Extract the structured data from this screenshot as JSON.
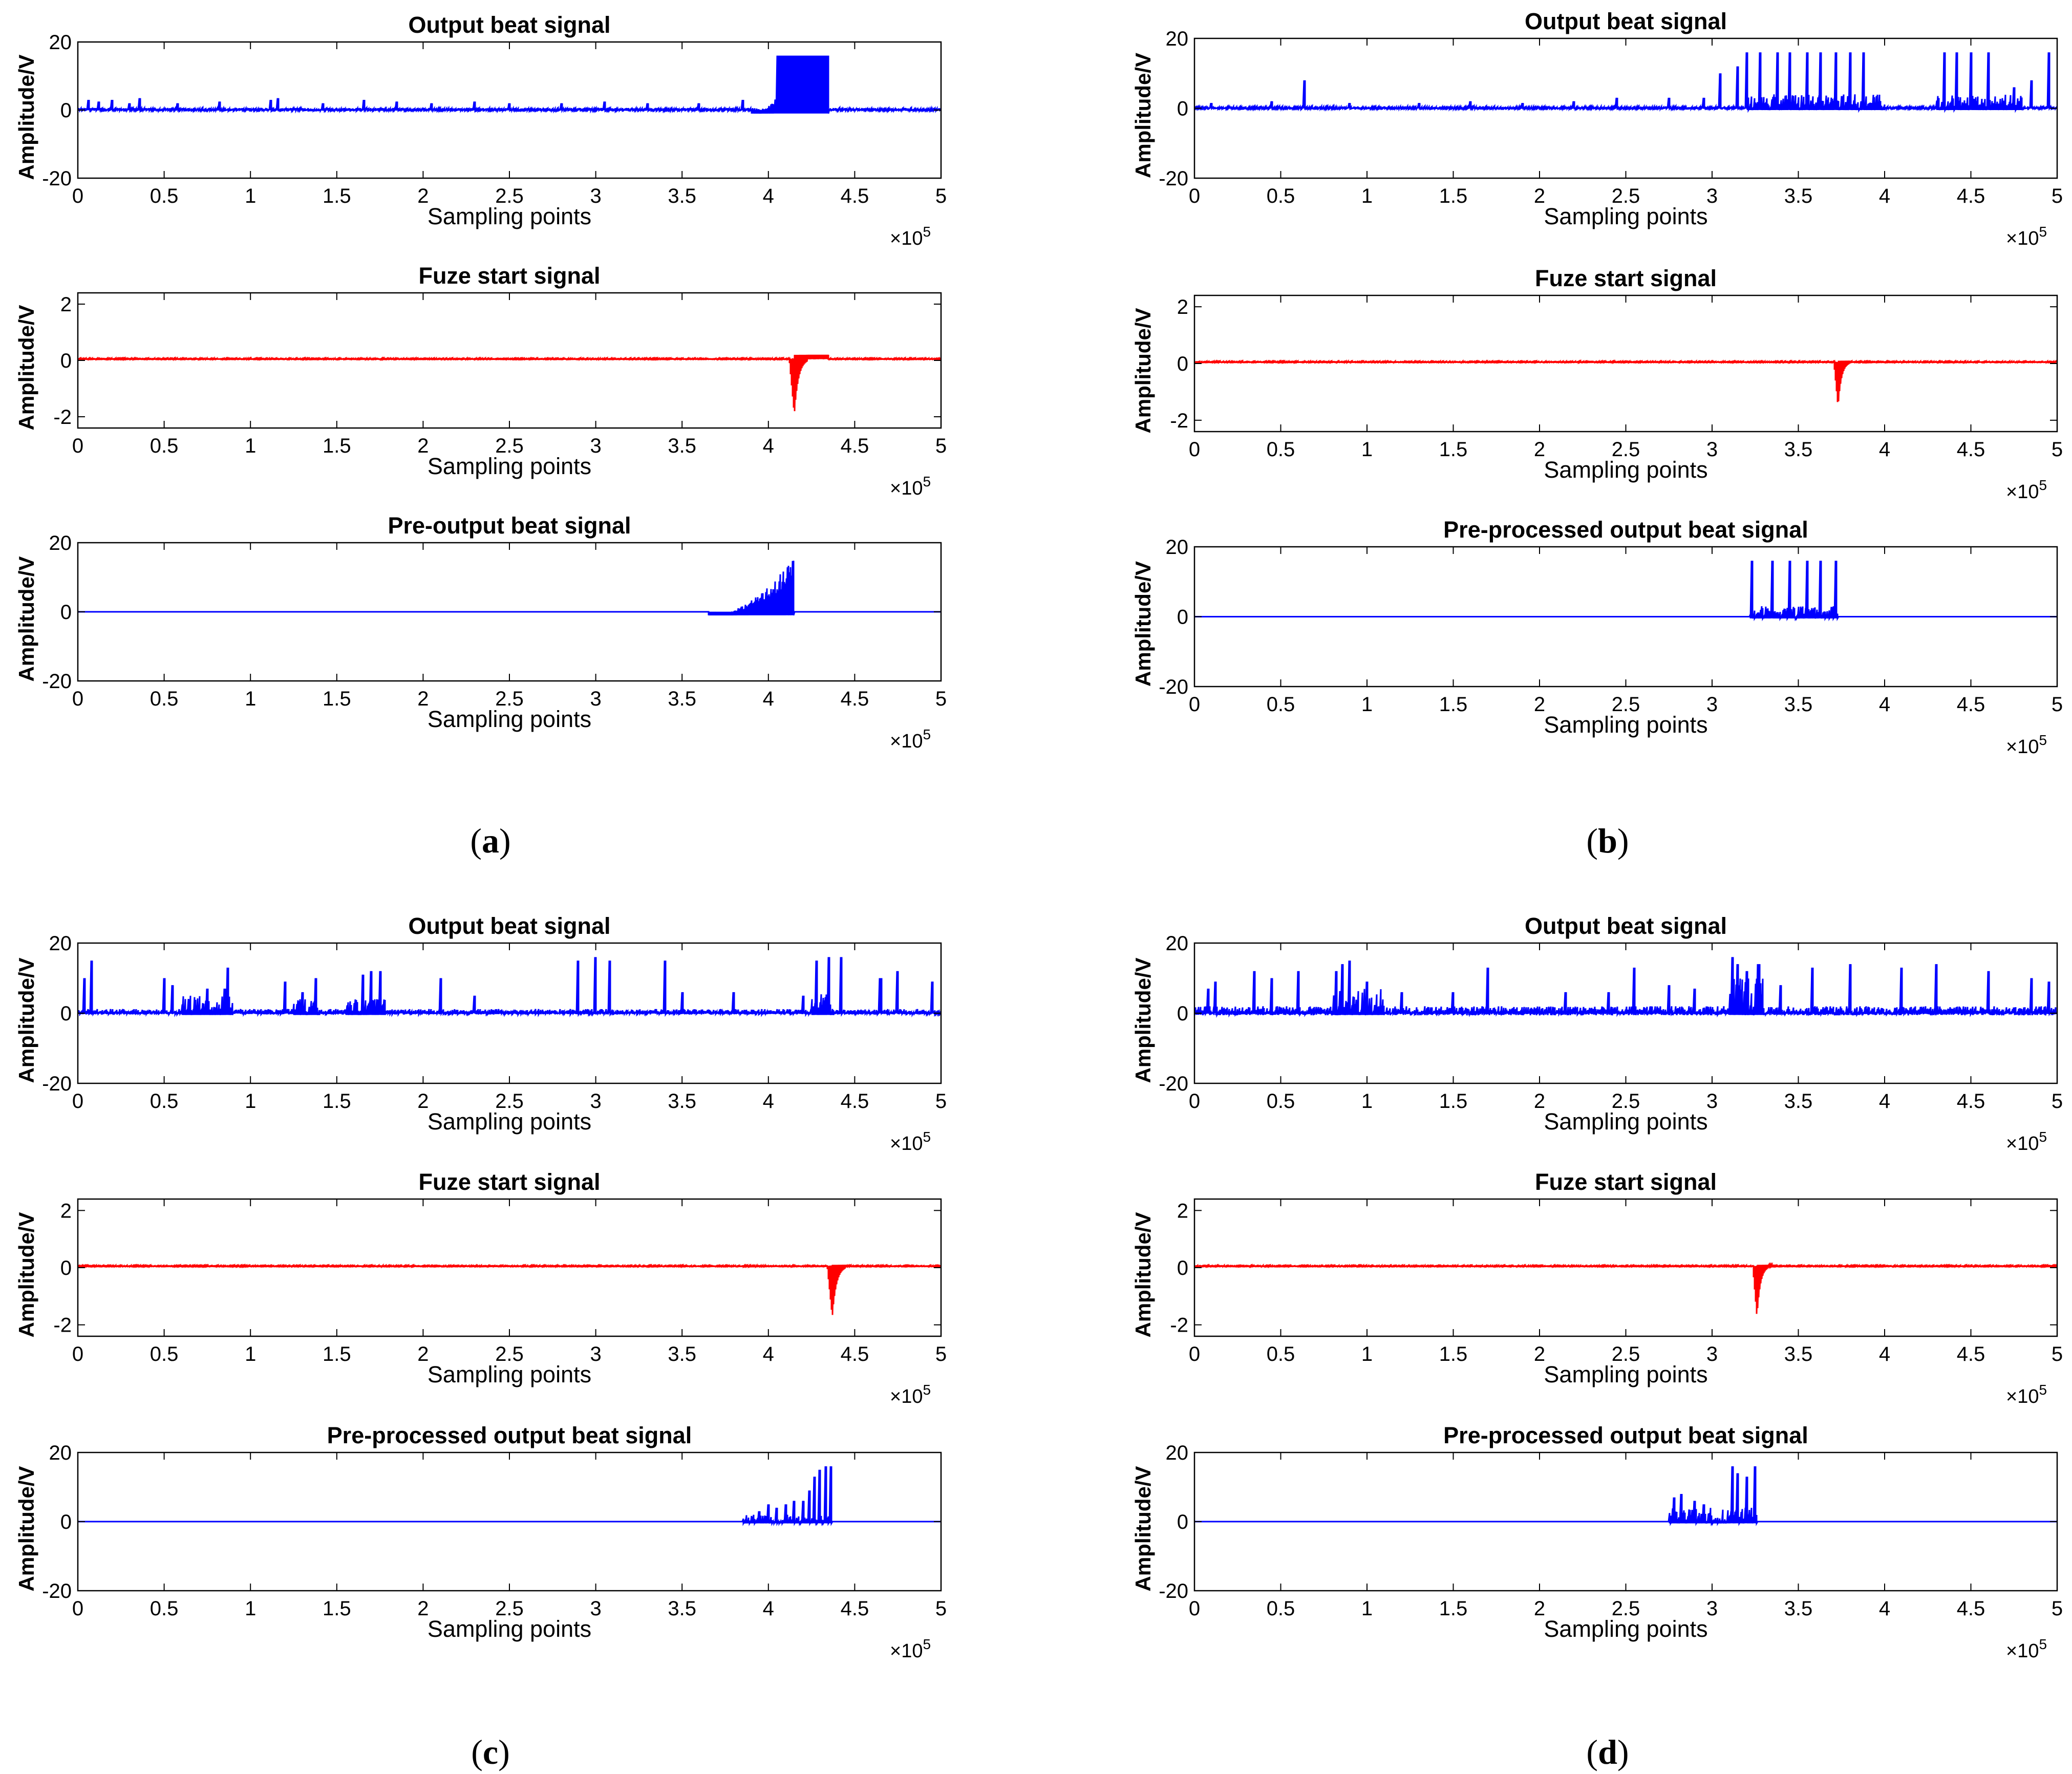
{
  "colors": {
    "blue": "#0000ff",
    "red": "#ff0000",
    "axis": "#000000",
    "background": "#ffffff"
  },
  "panel_labels": [
    {
      "open": "(",
      "letter": "a",
      "close": ")"
    },
    {
      "open": "(",
      "letter": "b",
      "close": ")"
    },
    {
      "open": "(",
      "letter": "c",
      "close": ")"
    },
    {
      "open": "(",
      "letter": "d",
      "close": ")"
    }
  ],
  "chart_data": [
    {
      "panel": "a",
      "type": "line",
      "title": "Output beat signal",
      "xlabel": "Sampling points",
      "ylabel": "Amplitude/V",
      "xlim": [
        0,
        5
      ],
      "ylim": [
        -20,
        20
      ],
      "xticks": [
        "0",
        "0.5",
        "1",
        "1.5",
        "2",
        "2.5",
        "3",
        "3.5",
        "4",
        "4.5",
        "5"
      ],
      "yticks": [
        "-20",
        "0",
        "20"
      ],
      "x_multiplier": "×10",
      "x_exponent": "5",
      "color": "#0000ff",
      "baseline": 0,
      "noise": 0.6,
      "spikes": [
        [
          0.06,
          3
        ],
        [
          0.12,
          2.5
        ],
        [
          0.2,
          3
        ],
        [
          0.3,
          2
        ],
        [
          0.36,
          3.5
        ],
        [
          0.58,
          2
        ],
        [
          0.82,
          2.5
        ],
        [
          1.12,
          3
        ],
        [
          1.16,
          3.5
        ],
        [
          1.42,
          2
        ],
        [
          1.66,
          3
        ],
        [
          1.85,
          2.5
        ],
        [
          2.05,
          2
        ],
        [
          2.3,
          2.5
        ],
        [
          2.5,
          2
        ],
        [
          2.8,
          2
        ],
        [
          3.05,
          2.5
        ],
        [
          3.3,
          2
        ],
        [
          3.6,
          2
        ],
        [
          3.85,
          3
        ]
      ],
      "segments": [
        {
          "x0": 3.9,
          "x1": 4.05,
          "min": -1,
          "max": 4,
          "grow": true
        },
        {
          "x0": 4.05,
          "x1": 4.35,
          "min": -1,
          "max": 16,
          "solid": true
        }
      ]
    },
    {
      "panel": "a",
      "type": "line",
      "title": "Fuze start signal",
      "xlabel": "Sampling points",
      "ylabel": "Amplitude/V",
      "xlim": [
        0,
        5
      ],
      "ylim": [
        -2.4,
        2.4
      ],
      "xticks": [
        "0",
        "0.5",
        "1",
        "1.5",
        "2",
        "2.5",
        "3",
        "3.5",
        "4",
        "4.5",
        "5"
      ],
      "yticks": [
        "-2",
        "0",
        "2"
      ],
      "x_multiplier": "×10",
      "x_exponent": "5",
      "color": "#ff0000",
      "baseline": 0.05,
      "noise": 0.03,
      "dip": {
        "x": 4.15,
        "depth": -2.0,
        "width": 0.03,
        "after": 0.15,
        "after_end": 4.35
      }
    },
    {
      "panel": "a",
      "type": "line",
      "title": "Pre-output beat signal",
      "xlabel": "Sampling points",
      "ylabel": "Amplitude/V",
      "xlim": [
        0,
        5
      ],
      "ylim": [
        -20,
        20
      ],
      "xticks": [
        "0",
        "0.5",
        "1",
        "1.5",
        "2",
        "2.5",
        "3",
        "3.5",
        "4",
        "4.5",
        "5"
      ],
      "yticks": [
        "-20",
        "0",
        "20"
      ],
      "x_multiplier": "×10",
      "x_exponent": "5",
      "color": "#0000ff",
      "baseline": 0,
      "noise": 0,
      "segments": [
        {
          "x0": 3.65,
          "x1": 4.15,
          "min": -1,
          "max": 16,
          "grow": true
        }
      ]
    },
    {
      "panel": "b",
      "type": "line",
      "title": "Output beat signal",
      "xlabel": "Sampling points",
      "ylabel": "Amplitude/V",
      "xlim": [
        0,
        5
      ],
      "ylim": [
        -20,
        20
      ],
      "xticks": [
        "0",
        "0.5",
        "1",
        "1.5",
        "2",
        "2.5",
        "3",
        "3.5",
        "4",
        "4.5",
        "5"
      ],
      "yticks": [
        "-20",
        "0",
        "20"
      ],
      "x_multiplier": "×10",
      "x_exponent": "5",
      "color": "#0000ff",
      "baseline": 0,
      "noise": 0.5,
      "spikes": [
        [
          0.1,
          1.5
        ],
        [
          0.45,
          2
        ],
        [
          0.64,
          8
        ],
        [
          0.9,
          1.5
        ],
        [
          1.3,
          1.5
        ],
        [
          1.6,
          2
        ],
        [
          1.9,
          1.5
        ],
        [
          2.2,
          2
        ],
        [
          2.45,
          3
        ],
        [
          2.75,
          3
        ],
        [
          2.95,
          3
        ],
        [
          3.05,
          10
        ],
        [
          3.15,
          12
        ],
        [
          3.2,
          16
        ],
        [
          3.28,
          16
        ],
        [
          3.38,
          16
        ],
        [
          3.45,
          16
        ],
        [
          3.55,
          16
        ],
        [
          3.63,
          16
        ],
        [
          3.72,
          16
        ],
        [
          3.8,
          16
        ],
        [
          3.88,
          16
        ],
        [
          4.35,
          16
        ],
        [
          4.42,
          16
        ],
        [
          4.5,
          16
        ],
        [
          4.6,
          16
        ],
        [
          4.75,
          6
        ],
        [
          4.85,
          8
        ],
        [
          4.95,
          16
        ]
      ],
      "segments": [
        {
          "x0": 3.2,
          "x1": 4.0,
          "min": -0.5,
          "max": 4
        },
        {
          "x0": 4.3,
          "x1": 4.8,
          "min": -0.5,
          "max": 4
        }
      ]
    },
    {
      "panel": "b",
      "type": "line",
      "title": "Fuze start signal",
      "xlabel": "Sampling points",
      "ylabel": "Amplitude/V",
      "xlim": [
        0,
        5
      ],
      "ylim": [
        -2.4,
        2.4
      ],
      "xticks": [
        "0",
        "0.5",
        "1",
        "1.5",
        "2",
        "2.5",
        "3",
        "3.5",
        "4",
        "4.5",
        "5"
      ],
      "yticks": [
        "-2",
        "0",
        "2"
      ],
      "x_multiplier": "×10",
      "x_exponent": "5",
      "color": "#ff0000",
      "baseline": 0.05,
      "noise": 0.03,
      "dip": {
        "x": 3.73,
        "depth": -1.6,
        "width": 0.025,
        "after": 0.05,
        "after_end": 3.8
      }
    },
    {
      "panel": "b",
      "type": "line",
      "title": "Pre-processed output beat signal",
      "xlabel": "Sampling points",
      "ylabel": "Amplitude/V",
      "xlim": [
        0,
        5
      ],
      "ylim": [
        -20,
        20
      ],
      "xticks": [
        "0",
        "0.5",
        "1",
        "1.5",
        "2",
        "2.5",
        "3",
        "3.5",
        "4",
        "4.5",
        "5"
      ],
      "yticks": [
        "-20",
        "0",
        "20"
      ],
      "x_multiplier": "×10",
      "x_exponent": "5",
      "color": "#0000ff",
      "baseline": 0,
      "noise": 0,
      "spikes": [
        [
          3.23,
          16
        ],
        [
          3.35,
          16
        ],
        [
          3.45,
          16
        ],
        [
          3.55,
          16
        ],
        [
          3.63,
          16
        ],
        [
          3.72,
          16
        ]
      ],
      "segments": [
        {
          "x0": 3.22,
          "x1": 3.73,
          "min": -0.5,
          "max": 3
        }
      ]
    },
    {
      "panel": "c",
      "type": "line",
      "title": "Output beat signal",
      "xlabel": "Sampling points",
      "ylabel": "Amplitude/V",
      "xlim": [
        0,
        5
      ],
      "ylim": [
        -20,
        20
      ],
      "xticks": [
        "0",
        "0.5",
        "1",
        "1.5",
        "2",
        "2.5",
        "3",
        "3.5",
        "4",
        "4.5",
        "5"
      ],
      "yticks": [
        "-20",
        "0",
        "20"
      ],
      "x_multiplier": "×10",
      "x_exponent": "5",
      "color": "#0000ff",
      "baseline": 0,
      "noise": 1.2,
      "spikes": [
        [
          0.04,
          10
        ],
        [
          0.08,
          15
        ],
        [
          0.5,
          10
        ],
        [
          0.55,
          8
        ],
        [
          0.75,
          7
        ],
        [
          0.85,
          7
        ],
        [
          0.87,
          13
        ],
        [
          1.2,
          9
        ],
        [
          1.3,
          6
        ],
        [
          1.38,
          10
        ],
        [
          1.65,
          11
        ],
        [
          1.7,
          12
        ],
        [
          1.75,
          12
        ],
        [
          2.1,
          10
        ],
        [
          2.3,
          5
        ],
        [
          2.9,
          15
        ],
        [
          3.0,
          16
        ],
        [
          3.08,
          15
        ],
        [
          3.4,
          15
        ],
        [
          3.5,
          6
        ],
        [
          3.8,
          6
        ],
        [
          4.2,
          5
        ],
        [
          4.28,
          15
        ],
        [
          4.35,
          16
        ],
        [
          4.42,
          16
        ],
        [
          4.65,
          10
        ],
        [
          4.75,
          12
        ],
        [
          4.95,
          9
        ]
      ],
      "segments": [
        {
          "x0": 0.6,
          "x1": 0.9,
          "min": -0.5,
          "max": 5
        },
        {
          "x0": 1.25,
          "x1": 1.4,
          "min": -0.5,
          "max": 4
        },
        {
          "x0": 1.55,
          "x1": 1.78,
          "min": -0.5,
          "max": 4
        },
        {
          "x0": 4.25,
          "x1": 4.38,
          "min": -0.5,
          "max": 6
        }
      ]
    },
    {
      "panel": "c",
      "type": "line",
      "title": "Fuze start signal",
      "xlabel": "Sampling points",
      "ylabel": "Amplitude/V",
      "xlim": [
        0,
        5
      ],
      "ylim": [
        -2.4,
        2.4
      ],
      "xticks": [
        "0",
        "0.5",
        "1",
        "1.5",
        "2",
        "2.5",
        "3",
        "3.5",
        "4",
        "4.5",
        "5"
      ],
      "yticks": [
        "-2",
        "0",
        "2"
      ],
      "x_multiplier": "×10",
      "x_exponent": "5",
      "color": "#ff0000",
      "baseline": 0.05,
      "noise": 0.03,
      "dip": {
        "x": 4.37,
        "depth": -1.8,
        "width": 0.03,
        "after": 0.05,
        "after_end": 4.45
      }
    },
    {
      "panel": "c",
      "type": "line",
      "title": "Pre-processed output beat signal",
      "xlabel": "Sampling points",
      "ylabel": "Amplitude/V",
      "xlim": [
        0,
        5
      ],
      "ylim": [
        -20,
        20
      ],
      "xticks": [
        "0",
        "0.5",
        "1",
        "1.5",
        "2",
        "2.5",
        "3",
        "3.5",
        "4",
        "4.5",
        "5"
      ],
      "yticks": [
        "-20",
        "0",
        "20"
      ],
      "x_multiplier": "×10",
      "x_exponent": "5",
      "color": "#0000ff",
      "baseline": 0,
      "noise": 0,
      "spikes": [
        [
          3.95,
          3
        ],
        [
          4.0,
          5
        ],
        [
          4.05,
          4
        ],
        [
          4.1,
          5
        ],
        [
          4.15,
          6
        ],
        [
          4.2,
          6
        ],
        [
          4.24,
          9
        ],
        [
          4.27,
          13
        ],
        [
          4.3,
          15
        ],
        [
          4.33,
          16
        ],
        [
          4.36,
          16
        ]
      ],
      "segments": [
        {
          "x0": 3.85,
          "x1": 4.37,
          "min": -0.5,
          "max": 2
        }
      ]
    },
    {
      "panel": "d",
      "type": "line",
      "title": "Output beat signal",
      "xlabel": "Sampling points",
      "ylabel": "Amplitude/V",
      "xlim": [
        0,
        5
      ],
      "ylim": [
        -20,
        20
      ],
      "xticks": [
        "0",
        "0.5",
        "1",
        "1.5",
        "2",
        "2.5",
        "3",
        "3.5",
        "4",
        "4.5",
        "5"
      ],
      "yticks": [
        "-20",
        "0",
        "20"
      ],
      "x_multiplier": "×10",
      "x_exponent": "5",
      "color": "#0000ff",
      "baseline": 0,
      "noise": 2,
      "spikes": [
        [
          0.08,
          7
        ],
        [
          0.12,
          9
        ],
        [
          0.35,
          12
        ],
        [
          0.45,
          10
        ],
        [
          0.6,
          12
        ],
        [
          0.82,
          12
        ],
        [
          0.86,
          14
        ],
        [
          0.9,
          15
        ],
        [
          1.0,
          9
        ],
        [
          1.2,
          6
        ],
        [
          1.5,
          6
        ],
        [
          1.7,
          13
        ],
        [
          2.15,
          6
        ],
        [
          2.4,
          6
        ],
        [
          2.55,
          13
        ],
        [
          2.75,
          8
        ],
        [
          2.9,
          7
        ],
        [
          3.12,
          16
        ],
        [
          3.15,
          14
        ],
        [
          3.2,
          12
        ],
        [
          3.27,
          14
        ],
        [
          3.4,
          8
        ],
        [
          3.58,
          13
        ],
        [
          3.8,
          14
        ],
        [
          4.1,
          13
        ],
        [
          4.3,
          14
        ],
        [
          4.6,
          12
        ],
        [
          4.85,
          10
        ],
        [
          4.95,
          9
        ]
      ],
      "segments": [
        {
          "x0": 0.8,
          "x1": 1.1,
          "min": -0.5,
          "max": 7
        },
        {
          "x0": 3.1,
          "x1": 3.3,
          "min": -0.5,
          "max": 10
        }
      ]
    },
    {
      "panel": "d",
      "type": "line",
      "title": "Fuze start signal",
      "xlabel": "Sampling points",
      "ylabel": "Amplitude/V",
      "xlim": [
        0,
        5
      ],
      "ylim": [
        -2.4,
        2.4
      ],
      "xticks": [
        "0",
        "0.5",
        "1",
        "1.5",
        "2",
        "2.5",
        "3",
        "3.5",
        "4",
        "4.5",
        "5"
      ],
      "yticks": [
        "-2",
        "0",
        "2"
      ],
      "x_multiplier": "×10",
      "x_exponent": "5",
      "color": "#ff0000",
      "baseline": 0.05,
      "noise": 0.03,
      "dip": {
        "x": 3.26,
        "depth": -1.8,
        "width": 0.025,
        "after": 0.05,
        "after_end": 3.35
      }
    },
    {
      "panel": "d",
      "type": "line",
      "title": "Pre-processed output beat signal",
      "xlabel": "Sampling points",
      "ylabel": "Amplitude/V",
      "xlim": [
        0,
        5
      ],
      "ylim": [
        -20,
        20
      ],
      "xticks": [
        "0",
        "0.5",
        "1",
        "1.5",
        "2",
        "2.5",
        "3",
        "3.5",
        "4",
        "4.5",
        "5"
      ],
      "yticks": [
        "-20",
        "0",
        "20"
      ],
      "x_multiplier": "×10",
      "x_exponent": "5",
      "color": "#0000ff",
      "baseline": 0,
      "noise": 0,
      "spikes": [
        [
          2.78,
          7
        ],
        [
          2.82,
          8
        ],
        [
          2.9,
          6
        ],
        [
          2.95,
          5
        ],
        [
          3.12,
          16
        ],
        [
          3.15,
          14
        ],
        [
          3.2,
          13
        ],
        [
          3.25,
          16
        ]
      ],
      "segments": [
        {
          "x0": 2.75,
          "x1": 3.26,
          "min": -0.5,
          "max": 4
        }
      ]
    }
  ]
}
